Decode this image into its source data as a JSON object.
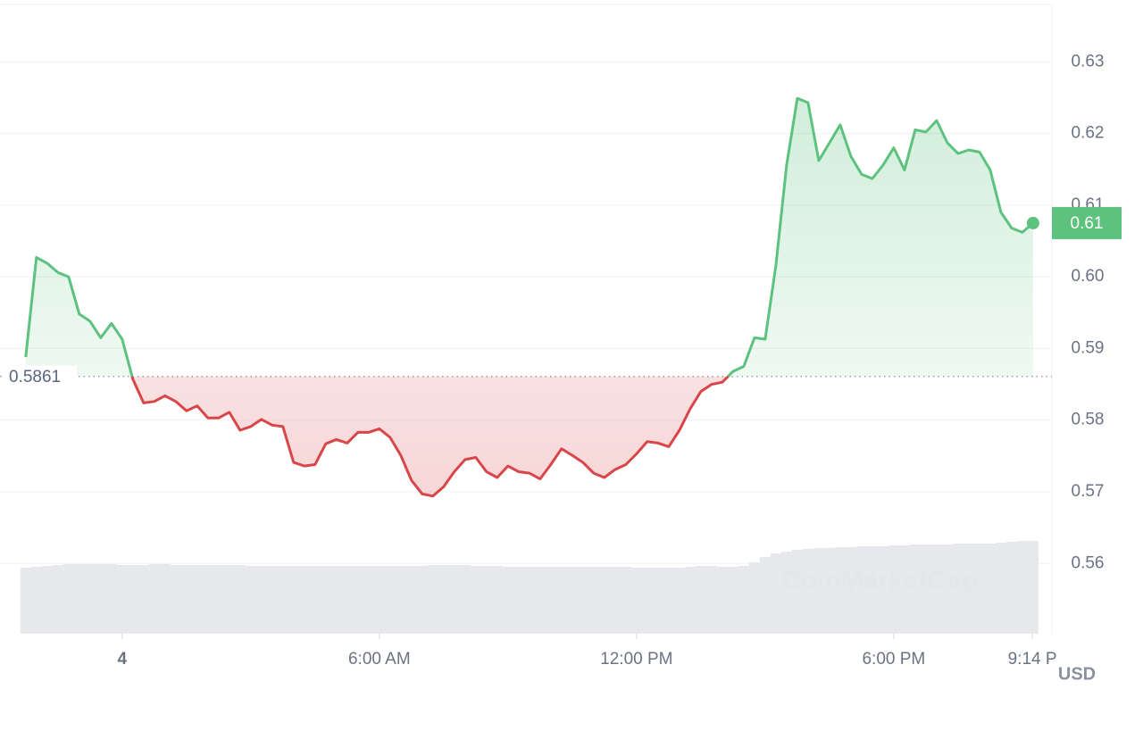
{
  "chart_data": {
    "type": "line",
    "x": [
      -2.25,
      -2,
      -1.75,
      -1.5,
      -1.25,
      -1,
      -0.75,
      -0.5,
      -0.25,
      0,
      0.25,
      0.5,
      0.75,
      1,
      1.25,
      1.5,
      1.75,
      2,
      2.25,
      2.5,
      2.75,
      3,
      3.25,
      3.5,
      3.75,
      4,
      4.25,
      4.5,
      4.75,
      5,
      5.25,
      5.5,
      5.75,
      6,
      6.25,
      6.5,
      6.75,
      7,
      7.25,
      7.5,
      7.75,
      8,
      8.25,
      8.5,
      8.75,
      9,
      9.25,
      9.5,
      9.75,
      10,
      10.25,
      10.5,
      10.75,
      11,
      11.25,
      11.5,
      11.75,
      12,
      12.25,
      12.5,
      12.75,
      13,
      13.25,
      13.5,
      13.75,
      14,
      14.25,
      14.5,
      14.75,
      15,
      15.25,
      15.5,
      15.75,
      16,
      16.25,
      16.5,
      16.75,
      17,
      17.25,
      17.5,
      17.75,
      18,
      18.25,
      18.5,
      18.75,
      19,
      19.25,
      19.5,
      19.75,
      20,
      20.25,
      20.5,
      20.75,
      21,
      21.25
    ],
    "values": [
      0.5888,
      0.6027,
      0.6019,
      0.6006,
      0.6,
      0.5948,
      0.5938,
      0.5915,
      0.5935,
      0.5913,
      0.5857,
      0.5824,
      0.5826,
      0.5834,
      0.5826,
      0.5813,
      0.582,
      0.5803,
      0.5803,
      0.5811,
      0.5786,
      0.5791,
      0.5801,
      0.5793,
      0.5791,
      0.5741,
      0.5736,
      0.5738,
      0.5767,
      0.5773,
      0.5768,
      0.5783,
      0.5783,
      0.5788,
      0.5776,
      0.5751,
      0.5716,
      0.5697,
      0.5694,
      0.5707,
      0.5728,
      0.5745,
      0.5748,
      0.5728,
      0.572,
      0.5736,
      0.5728,
      0.5726,
      0.5718,
      0.5738,
      0.576,
      0.5751,
      0.5741,
      0.5726,
      0.572,
      0.5731,
      0.5738,
      0.5753,
      0.577,
      0.5768,
      0.5763,
      0.5786,
      0.5816,
      0.584,
      0.585,
      0.5853,
      0.5868,
      0.5875,
      0.5915,
      0.5913,
      0.6016,
      0.6156,
      0.6249,
      0.6243,
      0.6162,
      0.6187,
      0.6212,
      0.6168,
      0.6143,
      0.6137,
      0.6156,
      0.618,
      0.6149,
      0.6205,
      0.6202,
      0.6218,
      0.6187,
      0.6172,
      0.6177,
      0.6174,
      0.6149,
      0.609,
      0.6068,
      0.6062,
      0.6075
    ],
    "volume": [
      74,
      75,
      76,
      77,
      78,
      78,
      78,
      78,
      78,
      77,
      77,
      77,
      78,
      78,
      77,
      77,
      77,
      77,
      77,
      77,
      77,
      76,
      76,
      76,
      76,
      76,
      76,
      76,
      76,
      76,
      76,
      76,
      76,
      76,
      76,
      76,
      76,
      76,
      77,
      77,
      77,
      77,
      76,
      76,
      76,
      75,
      75,
      75,
      75,
      75,
      75,
      75,
      75,
      75,
      75,
      75,
      75,
      74,
      74,
      74,
      74,
      74,
      75,
      76,
      76,
      75,
      75,
      76,
      80,
      86,
      90,
      92,
      94,
      95,
      96,
      96,
      97,
      97,
      98,
      98,
      98,
      99,
      99,
      100,
      100,
      100,
      100,
      101,
      101,
      101,
      101,
      102,
      103,
      104,
      104
    ],
    "volume_lim": [
      0,
      100
    ],
    "volume_color": "#e6e8ec",
    "xlim": [
      -2.85,
      21.69
    ],
    "xticks": [
      {
        "value": 0,
        "label": "4"
      },
      {
        "value": 6,
        "label": "6:00 AM"
      },
      {
        "value": 12,
        "label": "12:00 PM"
      },
      {
        "value": 18,
        "label": "6:00 PM"
      },
      {
        "value": 21.233,
        "label": "9:14 P"
      }
    ],
    "ylim": [
      0.5502,
      0.638
    ],
    "yticks": [
      0.56,
      0.57,
      0.58,
      0.59,
      {
        "value": 0.6,
        "label": "0.60"
      },
      0.61,
      0.62,
      0.63
    ],
    "grid": true,
    "baseline": 0.5861,
    "up_color": "#5cc27e",
    "down_color": "#d9464a",
    "last_value_label": "0.61",
    "currency": "USD",
    "watermark": "CoinMarketCap"
  }
}
